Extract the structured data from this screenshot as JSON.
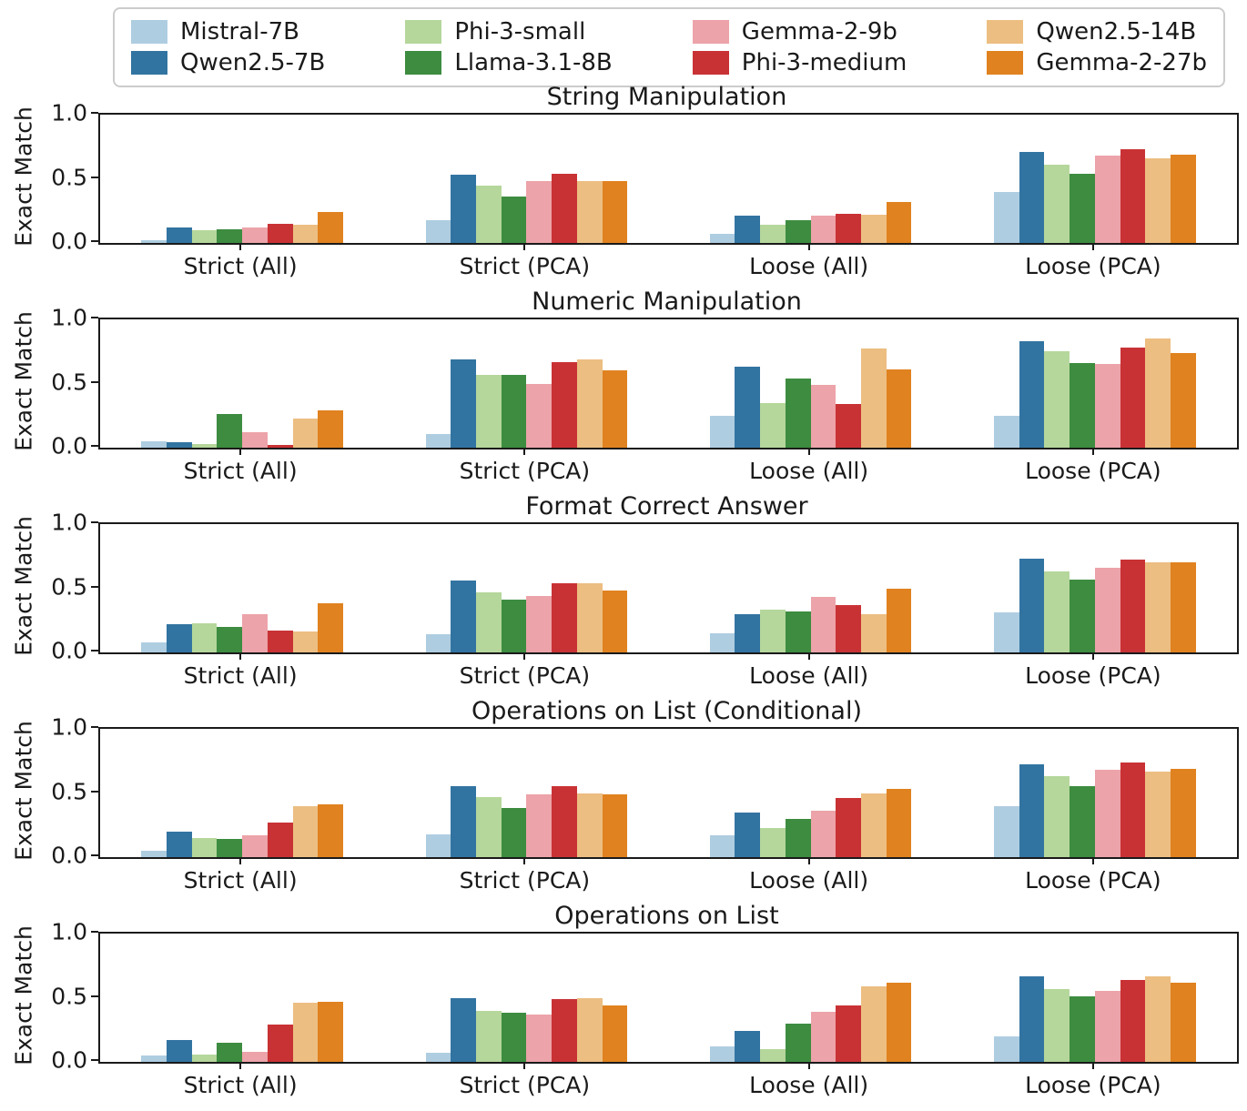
{
  "legend": {
    "items": [
      {
        "label": "Mistral-7B",
        "color": "#aecde1"
      },
      {
        "label": "Qwen2.5-7B",
        "color": "#3274a1"
      },
      {
        "label": "Phi-3-small",
        "color": "#b5d79b"
      },
      {
        "label": "Llama-3.1-8B",
        "color": "#3d8c40"
      },
      {
        "label": "Gemma-2-9b",
        "color": "#eca3a9"
      },
      {
        "label": "Phi-3-medium",
        "color": "#c93235"
      },
      {
        "label": "Qwen2.5-14B",
        "color": "#ecbe82"
      },
      {
        "label": "Gemma-2-27b",
        "color": "#e0821f"
      }
    ]
  },
  "chart_data": [
    {
      "type": "bar",
      "title": "String Manipulation",
      "categories": [
        "Strict (All)",
        "Strict (PCA)",
        "Loose (All)",
        "Loose (PCA)"
      ],
      "ylabel": "Exact Match",
      "ylim": [
        0,
        1
      ],
      "yticks": [
        0.0,
        0.5,
        1.0
      ],
      "grid": false,
      "legend_position": "top-outside",
      "series": [
        {
          "name": "Mistral-7B",
          "values": [
            0.02,
            0.18,
            0.07,
            0.4
          ]
        },
        {
          "name": "Qwen2.5-7B",
          "values": [
            0.12,
            0.53,
            0.21,
            0.71
          ]
        },
        {
          "name": "Phi-3-small",
          "values": [
            0.1,
            0.45,
            0.14,
            0.61
          ]
        },
        {
          "name": "Llama-3.1-8B",
          "values": [
            0.11,
            0.36,
            0.18,
            0.54
          ]
        },
        {
          "name": "Gemma-2-9b",
          "values": [
            0.12,
            0.48,
            0.21,
            0.68
          ]
        },
        {
          "name": "Phi-3-medium",
          "values": [
            0.15,
            0.54,
            0.23,
            0.73
          ]
        },
        {
          "name": "Qwen2.5-14B",
          "values": [
            0.14,
            0.48,
            0.22,
            0.66
          ]
        },
        {
          "name": "Gemma-2-27b",
          "values": [
            0.24,
            0.48,
            0.32,
            0.69
          ]
        }
      ]
    },
    {
      "type": "bar",
      "title": "Numeric Manipulation",
      "categories": [
        "Strict (All)",
        "Strict (PCA)",
        "Loose (All)",
        "Loose (PCA)"
      ],
      "ylabel": "Exact Match",
      "ylim": [
        0,
        1
      ],
      "yticks": [
        0.0,
        0.5,
        1.0
      ],
      "grid": false,
      "series": [
        {
          "name": "Mistral-7B",
          "values": [
            0.05,
            0.11,
            0.25,
            0.25
          ]
        },
        {
          "name": "Qwen2.5-7B",
          "values": [
            0.04,
            0.69,
            0.63,
            0.83
          ]
        },
        {
          "name": "Phi-3-small",
          "values": [
            0.03,
            0.57,
            0.35,
            0.75
          ]
        },
        {
          "name": "Llama-3.1-8B",
          "values": [
            0.26,
            0.57,
            0.54,
            0.66
          ]
        },
        {
          "name": "Gemma-2-9b",
          "values": [
            0.12,
            0.5,
            0.49,
            0.65
          ]
        },
        {
          "name": "Phi-3-medium",
          "values": [
            0.02,
            0.67,
            0.34,
            0.78
          ]
        },
        {
          "name": "Qwen2.5-14B",
          "values": [
            0.23,
            0.69,
            0.77,
            0.85
          ]
        },
        {
          "name": "Gemma-2-27b",
          "values": [
            0.29,
            0.6,
            0.61,
            0.74
          ]
        }
      ]
    },
    {
      "type": "bar",
      "title": "Format Correct Answer",
      "categories": [
        "Strict (All)",
        "Strict (PCA)",
        "Loose (All)",
        "Loose (PCA)"
      ],
      "ylabel": "Exact Match",
      "ylim": [
        0,
        1
      ],
      "yticks": [
        0.0,
        0.5,
        1.0
      ],
      "grid": false,
      "series": [
        {
          "name": "Mistral-7B",
          "values": [
            0.08,
            0.14,
            0.15,
            0.31
          ]
        },
        {
          "name": "Qwen2.5-7B",
          "values": [
            0.22,
            0.56,
            0.3,
            0.73
          ]
        },
        {
          "name": "Phi-3-small",
          "values": [
            0.23,
            0.47,
            0.33,
            0.63
          ]
        },
        {
          "name": "Llama-3.1-8B",
          "values": [
            0.2,
            0.41,
            0.32,
            0.57
          ]
        },
        {
          "name": "Gemma-2-9b",
          "values": [
            0.3,
            0.44,
            0.43,
            0.66
          ]
        },
        {
          "name": "Phi-3-medium",
          "values": [
            0.17,
            0.54,
            0.37,
            0.72
          ]
        },
        {
          "name": "Qwen2.5-14B",
          "values": [
            0.16,
            0.54,
            0.3,
            0.7
          ]
        },
        {
          "name": "Gemma-2-27b",
          "values": [
            0.38,
            0.48,
            0.5,
            0.7
          ]
        }
      ]
    },
    {
      "type": "bar",
      "title": "Operations on List (Conditional)",
      "categories": [
        "Strict (All)",
        "Strict (PCA)",
        "Loose (All)",
        "Loose (PCA)"
      ],
      "ylabel": "Exact Match",
      "ylim": [
        0,
        1
      ],
      "yticks": [
        0.0,
        0.5,
        1.0
      ],
      "grid": false,
      "series": [
        {
          "name": "Mistral-7B",
          "values": [
            0.05,
            0.18,
            0.17,
            0.4
          ]
        },
        {
          "name": "Qwen2.5-7B",
          "values": [
            0.2,
            0.55,
            0.35,
            0.72
          ]
        },
        {
          "name": "Phi-3-small",
          "values": [
            0.15,
            0.47,
            0.23,
            0.63
          ]
        },
        {
          "name": "Llama-3.1-8B",
          "values": [
            0.14,
            0.38,
            0.3,
            0.55
          ]
        },
        {
          "name": "Gemma-2-9b",
          "values": [
            0.17,
            0.49,
            0.36,
            0.68
          ]
        },
        {
          "name": "Phi-3-medium",
          "values": [
            0.27,
            0.55,
            0.46,
            0.74
          ]
        },
        {
          "name": "Qwen2.5-14B",
          "values": [
            0.4,
            0.5,
            0.5,
            0.67
          ]
        },
        {
          "name": "Gemma-2-27b",
          "values": [
            0.41,
            0.49,
            0.53,
            0.69
          ]
        }
      ]
    },
    {
      "type": "bar",
      "title": "Operations on List",
      "categories": [
        "Strict (All)",
        "Strict (PCA)",
        "Loose (All)",
        "Loose (PCA)"
      ],
      "ylabel": "Exact Match",
      "ylim": [
        0,
        1
      ],
      "yticks": [
        0.0,
        0.5,
        1.0
      ],
      "grid": false,
      "series": [
        {
          "name": "Mistral-7B",
          "values": [
            0.05,
            0.07,
            0.12,
            0.2
          ]
        },
        {
          "name": "Qwen2.5-7B",
          "values": [
            0.17,
            0.5,
            0.24,
            0.67
          ]
        },
        {
          "name": "Phi-3-small",
          "values": [
            0.06,
            0.4,
            0.1,
            0.57
          ]
        },
        {
          "name": "Llama-3.1-8B",
          "values": [
            0.15,
            0.38,
            0.3,
            0.51
          ]
        },
        {
          "name": "Gemma-2-9b",
          "values": [
            0.08,
            0.37,
            0.39,
            0.55
          ]
        },
        {
          "name": "Phi-3-medium",
          "values": [
            0.29,
            0.49,
            0.44,
            0.64
          ]
        },
        {
          "name": "Qwen2.5-14B",
          "values": [
            0.46,
            0.5,
            0.59,
            0.67
          ]
        },
        {
          "name": "Gemma-2-27b",
          "values": [
            0.47,
            0.44,
            0.62,
            0.62
          ]
        }
      ]
    }
  ]
}
